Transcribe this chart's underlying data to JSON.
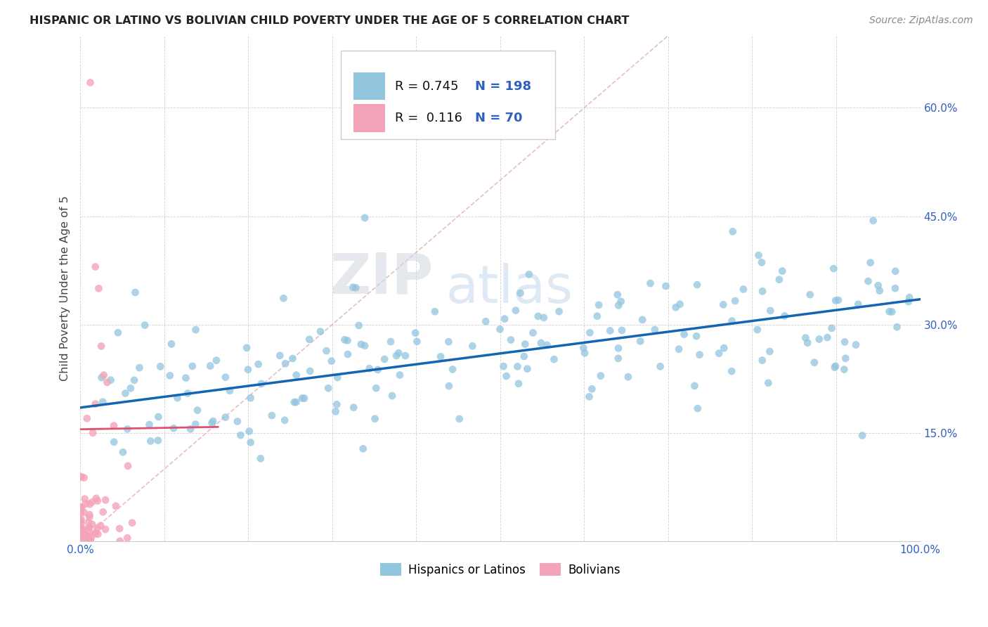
{
  "title": "HISPANIC OR LATINO VS BOLIVIAN CHILD POVERTY UNDER THE AGE OF 5 CORRELATION CHART",
  "source": "Source: ZipAtlas.com",
  "ylabel": "Child Poverty Under the Age of 5",
  "xlim": [
    0,
    1.0
  ],
  "ylim": [
    0,
    0.7
  ],
  "x_ticks": [
    0.0,
    0.1,
    0.2,
    0.3,
    0.4,
    0.5,
    0.6,
    0.7,
    0.8,
    0.9,
    1.0
  ],
  "y_ticks": [
    0.0,
    0.15,
    0.3,
    0.45,
    0.6
  ],
  "blue_color": "#92c5de",
  "pink_color": "#f4a4b8",
  "blue_line_color": "#1464b4",
  "pink_line_color": "#e05070",
  "diag_color": "#e8b4c0",
  "R_blue": 0.745,
  "N_blue": 198,
  "R_pink": 0.116,
  "N_pink": 70,
  "legend_R_color": "#3060c0",
  "legend_N_color": "#3060c0",
  "watermark_zip": "ZIP",
  "watermark_atlas": "atlas",
  "background_color": "#ffffff",
  "seed": 42,
  "blue_line_start_y": 0.185,
  "blue_line_end_y": 0.335,
  "pink_line_start_y": 0.155,
  "pink_line_end_y": 0.175
}
